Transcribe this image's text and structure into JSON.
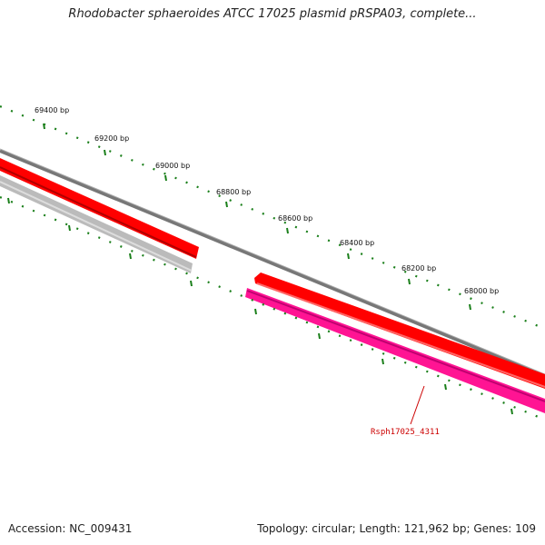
{
  "title": "Rhodobacter sphaeroides ATCC 17025 plasmid pRSPA03, complete...",
  "ruler": {
    "ticks": [
      "69400 bp",
      "69200 bp",
      "69000 bp",
      "68800 bp",
      "68600 bp",
      "68400 bp",
      "68200 bp",
      "68000 bp"
    ]
  },
  "genes": [
    {
      "label": "Rsph17025_4311"
    }
  ],
  "footer": {
    "accession": "Accession: NC_009431",
    "summary": "Topology: circular; Length: 121,962 bp; Genes: 109"
  },
  "colors": {
    "backbone": "#777777",
    "forward_cds": "#ff0000",
    "reverse_cds_gray": "#bbbbbb",
    "reverse_cds_pink": "#ff1493",
    "ticks": "#1a7f1a",
    "label": "#cc0000"
  }
}
